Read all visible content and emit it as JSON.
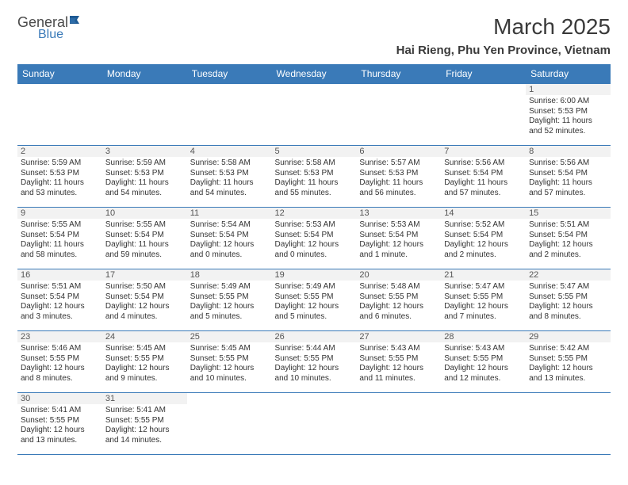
{
  "logo": {
    "general": "General",
    "blue": "Blue"
  },
  "title": "March 2025",
  "subtitle": "Hai Rieng, Phu Yen Province, Vietnam",
  "dayHeaders": [
    "Sunday",
    "Monday",
    "Tuesday",
    "Wednesday",
    "Thursday",
    "Friday",
    "Saturday"
  ],
  "colors": {
    "headerBg": "#3a7ab8",
    "headerText": "#ffffff",
    "border": "#3a7ab8",
    "shaded": "#f2f2f2",
    "logoBlue": "#3a7ab8"
  },
  "weeks": [
    [
      {
        "n": "",
        "sr": "",
        "ss": "",
        "dl": ""
      },
      {
        "n": "",
        "sr": "",
        "ss": "",
        "dl": ""
      },
      {
        "n": "",
        "sr": "",
        "ss": "",
        "dl": ""
      },
      {
        "n": "",
        "sr": "",
        "ss": "",
        "dl": ""
      },
      {
        "n": "",
        "sr": "",
        "ss": "",
        "dl": ""
      },
      {
        "n": "",
        "sr": "",
        "ss": "",
        "dl": ""
      },
      {
        "n": "1",
        "sr": "Sunrise: 6:00 AM",
        "ss": "Sunset: 5:53 PM",
        "dl": "Daylight: 11 hours and 52 minutes."
      }
    ],
    [
      {
        "n": "2",
        "sr": "Sunrise: 5:59 AM",
        "ss": "Sunset: 5:53 PM",
        "dl": "Daylight: 11 hours and 53 minutes."
      },
      {
        "n": "3",
        "sr": "Sunrise: 5:59 AM",
        "ss": "Sunset: 5:53 PM",
        "dl": "Daylight: 11 hours and 54 minutes."
      },
      {
        "n": "4",
        "sr": "Sunrise: 5:58 AM",
        "ss": "Sunset: 5:53 PM",
        "dl": "Daylight: 11 hours and 54 minutes."
      },
      {
        "n": "5",
        "sr": "Sunrise: 5:58 AM",
        "ss": "Sunset: 5:53 PM",
        "dl": "Daylight: 11 hours and 55 minutes."
      },
      {
        "n": "6",
        "sr": "Sunrise: 5:57 AM",
        "ss": "Sunset: 5:53 PM",
        "dl": "Daylight: 11 hours and 56 minutes."
      },
      {
        "n": "7",
        "sr": "Sunrise: 5:56 AM",
        "ss": "Sunset: 5:54 PM",
        "dl": "Daylight: 11 hours and 57 minutes."
      },
      {
        "n": "8",
        "sr": "Sunrise: 5:56 AM",
        "ss": "Sunset: 5:54 PM",
        "dl": "Daylight: 11 hours and 57 minutes."
      }
    ],
    [
      {
        "n": "9",
        "sr": "Sunrise: 5:55 AM",
        "ss": "Sunset: 5:54 PM",
        "dl": "Daylight: 11 hours and 58 minutes."
      },
      {
        "n": "10",
        "sr": "Sunrise: 5:55 AM",
        "ss": "Sunset: 5:54 PM",
        "dl": "Daylight: 11 hours and 59 minutes."
      },
      {
        "n": "11",
        "sr": "Sunrise: 5:54 AM",
        "ss": "Sunset: 5:54 PM",
        "dl": "Daylight: 12 hours and 0 minutes."
      },
      {
        "n": "12",
        "sr": "Sunrise: 5:53 AM",
        "ss": "Sunset: 5:54 PM",
        "dl": "Daylight: 12 hours and 0 minutes."
      },
      {
        "n": "13",
        "sr": "Sunrise: 5:53 AM",
        "ss": "Sunset: 5:54 PM",
        "dl": "Daylight: 12 hours and 1 minute."
      },
      {
        "n": "14",
        "sr": "Sunrise: 5:52 AM",
        "ss": "Sunset: 5:54 PM",
        "dl": "Daylight: 12 hours and 2 minutes."
      },
      {
        "n": "15",
        "sr": "Sunrise: 5:51 AM",
        "ss": "Sunset: 5:54 PM",
        "dl": "Daylight: 12 hours and 2 minutes."
      }
    ],
    [
      {
        "n": "16",
        "sr": "Sunrise: 5:51 AM",
        "ss": "Sunset: 5:54 PM",
        "dl": "Daylight: 12 hours and 3 minutes."
      },
      {
        "n": "17",
        "sr": "Sunrise: 5:50 AM",
        "ss": "Sunset: 5:54 PM",
        "dl": "Daylight: 12 hours and 4 minutes."
      },
      {
        "n": "18",
        "sr": "Sunrise: 5:49 AM",
        "ss": "Sunset: 5:55 PM",
        "dl": "Daylight: 12 hours and 5 minutes."
      },
      {
        "n": "19",
        "sr": "Sunrise: 5:49 AM",
        "ss": "Sunset: 5:55 PM",
        "dl": "Daylight: 12 hours and 5 minutes."
      },
      {
        "n": "20",
        "sr": "Sunrise: 5:48 AM",
        "ss": "Sunset: 5:55 PM",
        "dl": "Daylight: 12 hours and 6 minutes."
      },
      {
        "n": "21",
        "sr": "Sunrise: 5:47 AM",
        "ss": "Sunset: 5:55 PM",
        "dl": "Daylight: 12 hours and 7 minutes."
      },
      {
        "n": "22",
        "sr": "Sunrise: 5:47 AM",
        "ss": "Sunset: 5:55 PM",
        "dl": "Daylight: 12 hours and 8 minutes."
      }
    ],
    [
      {
        "n": "23",
        "sr": "Sunrise: 5:46 AM",
        "ss": "Sunset: 5:55 PM",
        "dl": "Daylight: 12 hours and 8 minutes."
      },
      {
        "n": "24",
        "sr": "Sunrise: 5:45 AM",
        "ss": "Sunset: 5:55 PM",
        "dl": "Daylight: 12 hours and 9 minutes."
      },
      {
        "n": "25",
        "sr": "Sunrise: 5:45 AM",
        "ss": "Sunset: 5:55 PM",
        "dl": "Daylight: 12 hours and 10 minutes."
      },
      {
        "n": "26",
        "sr": "Sunrise: 5:44 AM",
        "ss": "Sunset: 5:55 PM",
        "dl": "Daylight: 12 hours and 10 minutes."
      },
      {
        "n": "27",
        "sr": "Sunrise: 5:43 AM",
        "ss": "Sunset: 5:55 PM",
        "dl": "Daylight: 12 hours and 11 minutes."
      },
      {
        "n": "28",
        "sr": "Sunrise: 5:43 AM",
        "ss": "Sunset: 5:55 PM",
        "dl": "Daylight: 12 hours and 12 minutes."
      },
      {
        "n": "29",
        "sr": "Sunrise: 5:42 AM",
        "ss": "Sunset: 5:55 PM",
        "dl": "Daylight: 12 hours and 13 minutes."
      }
    ],
    [
      {
        "n": "30",
        "sr": "Sunrise: 5:41 AM",
        "ss": "Sunset: 5:55 PM",
        "dl": "Daylight: 12 hours and 13 minutes."
      },
      {
        "n": "31",
        "sr": "Sunrise: 5:41 AM",
        "ss": "Sunset: 5:55 PM",
        "dl": "Daylight: 12 hours and 14 minutes."
      },
      {
        "n": "",
        "sr": "",
        "ss": "",
        "dl": ""
      },
      {
        "n": "",
        "sr": "",
        "ss": "",
        "dl": ""
      },
      {
        "n": "",
        "sr": "",
        "ss": "",
        "dl": ""
      },
      {
        "n": "",
        "sr": "",
        "ss": "",
        "dl": ""
      },
      {
        "n": "",
        "sr": "",
        "ss": "",
        "dl": ""
      }
    ]
  ]
}
